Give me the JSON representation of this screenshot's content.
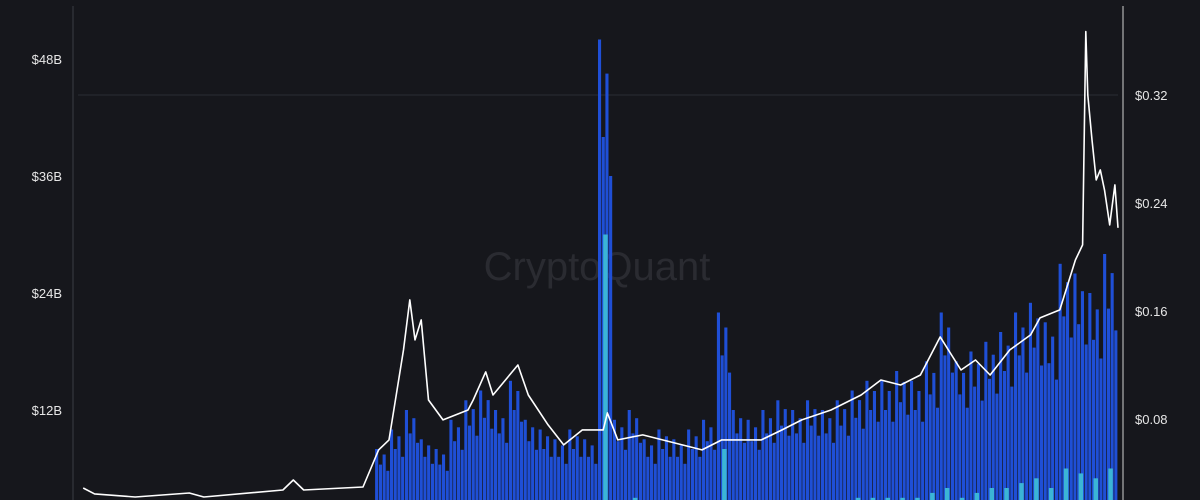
{
  "chart_data": {
    "type": "bar+line",
    "watermark": "CryptoQuant",
    "left_axis": {
      "ticks": [
        "$12B",
        "$24B",
        "$36B",
        "$48B"
      ],
      "tick_values": [
        12,
        24,
        36,
        48
      ],
      "unit": "billion USD",
      "range": [
        0,
        54
      ]
    },
    "right_axis": {
      "ticks": [
        "$0.08",
        "$0.16",
        "$0.24",
        "$0.32"
      ],
      "tick_values": [
        0.08,
        0.16,
        0.24,
        0.32
      ],
      "unit": "USD",
      "range": [
        0,
        0.39
      ]
    },
    "grid": "single horizontal gridline at $0.32",
    "colors": {
      "background": "#16171c",
      "volume": "#1f4fd6",
      "volume_sub": "#3bb5d6",
      "price": "#ffffff",
      "grid": "#2a2c33"
    },
    "series": [
      {
        "kind": "bar",
        "axis": "left",
        "color": "#1f4fd6",
        "values": [
          0.2,
          0.2,
          0.2,
          0.3,
          0.2,
          0.2,
          0.3,
          0.2,
          0.3,
          0.3,
          0.2,
          0.3,
          0.4,
          0.5,
          0.4,
          0.4,
          0.5,
          0.6,
          0.8,
          1.2,
          8,
          10,
          12,
          9,
          8,
          11,
          13,
          14,
          12,
          15,
          11,
          10,
          9,
          10,
          9,
          50,
          11,
          12,
          9,
          10,
          9,
          10,
          11,
          22,
          12,
          11,
          12,
          13,
          12,
          13,
          12,
          13,
          14,
          15,
          15,
          16,
          15,
          17,
          22,
          17,
          18,
          19,
          20,
          22,
          23,
          21,
          27,
          26,
          24,
          28
        ]
      },
      {
        "kind": "bar",
        "axis": "left",
        "color": "#3bb5d6",
        "values": [
          0,
          0,
          0,
          0,
          0,
          0,
          0,
          0,
          0,
          0,
          0,
          0,
          0,
          0,
          0,
          0,
          0,
          0,
          0.1,
          0.2,
          1,
          1.5,
          2,
          1,
          1,
          1.5,
          2,
          2,
          1.5,
          2,
          1.5,
          1,
          1,
          1.5,
          1,
          30,
          2,
          3,
          1.5,
          2,
          1.5,
          2,
          2,
          8,
          2,
          2,
          2,
          2.5,
          2,
          2.5,
          2,
          2.5,
          3,
          3,
          3,
          3,
          3,
          3.5,
          4,
          3,
          3.5,
          4,
          4,
          4.5,
          5,
          4,
          6,
          5.5,
          5,
          6
        ]
      },
      {
        "kind": "line",
        "axis": "right",
        "color": "#ffffff",
        "values": [
          0.0289,
          0.0245,
          0.0222,
          0.0252,
          0.0222,
          0.0274,
          0.0348,
          0.0274,
          0.0296,
          0.0571,
          0.0645,
          0.1312,
          0.1682,
          0.1386,
          0.1534,
          0.0941,
          0.0793,
          0.0867,
          0.0941,
          0.1149,
          0.0978,
          0.12,
          0.0978,
          0.0756,
          0.0608,
          0.0719,
          0.0719,
          0.0845,
          0.0645,
          0.0682,
          0.0645,
          0.0571,
          0.0645,
          0.0645,
          0.0719,
          0.0793,
          0.0867,
          0.0978,
          0.1089,
          0.1052,
          0.1126,
          0.1408,
          0.1163,
          0.1237,
          0.1126,
          0.1312,
          0.1423,
          0.1549,
          0.1608,
          0.1978,
          0.209,
          0.367,
          0.32,
          0.2868,
          0.2571,
          0.2645,
          0.2497,
          0.2238,
          0.2534,
          0.2216
        ],
        "sample_positions": [
          0.005,
          0.016,
          0.055,
          0.107,
          0.121,
          0.197,
          0.207,
          0.217,
          0.274,
          0.289,
          0.299,
          0.313,
          0.319,
          0.324,
          0.33,
          0.337,
          0.351,
          0.375,
          0.38,
          0.392,
          0.399,
          0.423,
          0.433,
          0.452,
          0.467,
          0.485,
          0.505,
          0.509,
          0.519,
          0.543,
          0.562,
          0.6,
          0.619,
          0.657,
          0.677,
          0.696,
          0.724,
          0.753,
          0.772,
          0.791,
          0.81,
          0.829,
          0.849,
          0.863,
          0.877,
          0.896,
          0.916,
          0.925,
          0.944,
          0.959,
          0.966,
          0.969,
          0.971,
          0.975,
          0.979,
          0.983,
          0.987,
          0.992,
          0.997,
          1.0
        ]
      }
    ]
  }
}
